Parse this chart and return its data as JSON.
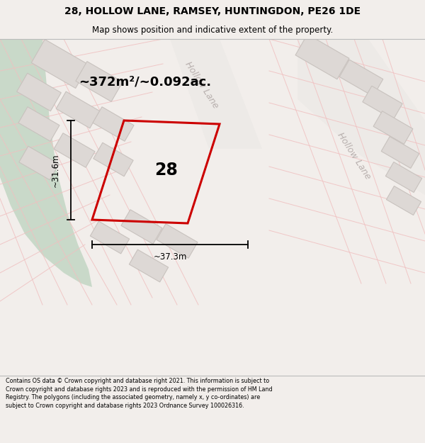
{
  "title_line1": "28, HOLLOW LANE, RAMSEY, HUNTINGDON, PE26 1DE",
  "title_line2": "Map shows position and indicative extent of the property.",
  "area_label": "~372m²/~0.092ac.",
  "property_number": "28",
  "dim_width": "~37.3m",
  "dim_height": "~31.6m",
  "road_label_top": "Hollow Lane",
  "road_label_right": "Hollow Lane",
  "footer_text": "Contains OS data © Crown copyright and database right 2021. This information is subject to Crown copyright and database rights 2023 and is reproduced with the permission of HM Land Registry. The polygons (including the associated geometry, namely x, y co-ordinates) are subject to Crown copyright and database rights 2023 Ordnance Survey 100026316.",
  "bg_color": "#f2eeeb",
  "map_bg": "#f5f1ee",
  "plot_outline_color": "#cc0000",
  "green_area_color": "#c9d9c9",
  "building_fill": "#ddd8d5",
  "building_line": "#c8c2be",
  "road_line_color": "#e8b0b0",
  "header_bg": "#ffffff",
  "footer_bg": "#ffffff",
  "cadastral_color": "#f0c0c0"
}
